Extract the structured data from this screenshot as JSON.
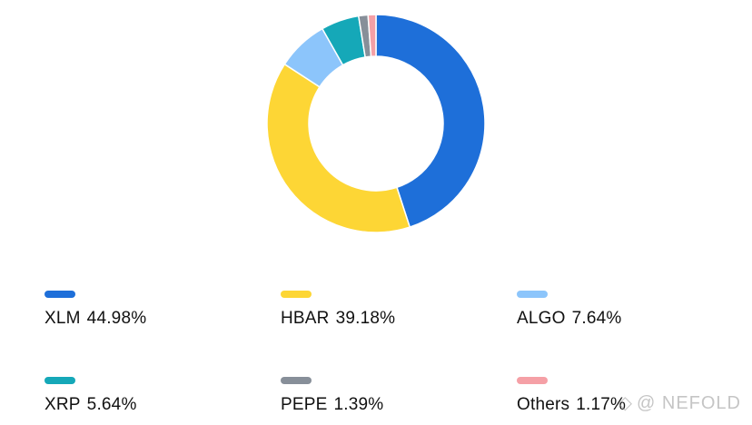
{
  "chart_data": {
    "type": "pie",
    "title": "",
    "categories": [
      "XLM",
      "HBAR",
      "ALGO",
      "XRP",
      "PEPE",
      "Others"
    ],
    "values": [
      44.98,
      39.18,
      7.64,
      5.64,
      1.39,
      1.17
    ],
    "value_labels": [
      "44.98%",
      "39.18%",
      "7.64%",
      "5.64%",
      "1.39%",
      "1.17%"
    ],
    "colors": [
      "#1e6fd9",
      "#fdd635",
      "#8cc5fb",
      "#15a8b8",
      "#878f99",
      "#f5a0a6"
    ],
    "donut": true,
    "legend_position": "bottom"
  },
  "watermark": {
    "text": "@ NEFOLD",
    "icon": "nefold-logo-icon"
  }
}
